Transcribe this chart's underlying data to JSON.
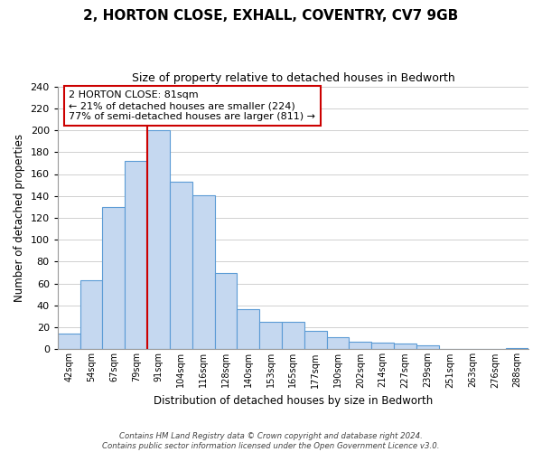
{
  "title": "2, HORTON CLOSE, EXHALL, COVENTRY, CV7 9GB",
  "subtitle": "Size of property relative to detached houses in Bedworth",
  "xlabel": "Distribution of detached houses by size in Bedworth",
  "ylabel": "Number of detached properties",
  "bin_labels": [
    "42sqm",
    "54sqm",
    "67sqm",
    "79sqm",
    "91sqm",
    "104sqm",
    "116sqm",
    "128sqm",
    "140sqm",
    "153sqm",
    "165sqm",
    "177sqm",
    "190sqm",
    "202sqm",
    "214sqm",
    "227sqm",
    "239sqm",
    "251sqm",
    "263sqm",
    "276sqm",
    "288sqm"
  ],
  "bar_values": [
    14,
    63,
    130,
    172,
    200,
    153,
    141,
    70,
    37,
    25,
    25,
    17,
    11,
    7,
    6,
    5,
    4,
    0,
    0,
    0,
    1
  ],
  "bar_color": "#c5d8f0",
  "bar_edge_color": "#5b9bd5",
  "vline_color": "#cc0000",
  "vline_pos": 4.0,
  "annotation_line1": "2 HORTON CLOSE: 81sqm",
  "annotation_line2": "← 21% of detached houses are smaller (224)",
  "annotation_line3": "77% of semi-detached houses are larger (811) →",
  "annotation_box_color": "#ffffff",
  "annotation_box_edge": "#cc0000",
  "ylim": [
    0,
    240
  ],
  "yticks": [
    0,
    20,
    40,
    60,
    80,
    100,
    120,
    140,
    160,
    180,
    200,
    220,
    240
  ],
  "footer_line1": "Contains HM Land Registry data © Crown copyright and database right 2024.",
  "footer_line2": "Contains public sector information licensed under the Open Government Licence v3.0.",
  "bg_color": "#ffffff",
  "grid_color": "#d0d0d0"
}
